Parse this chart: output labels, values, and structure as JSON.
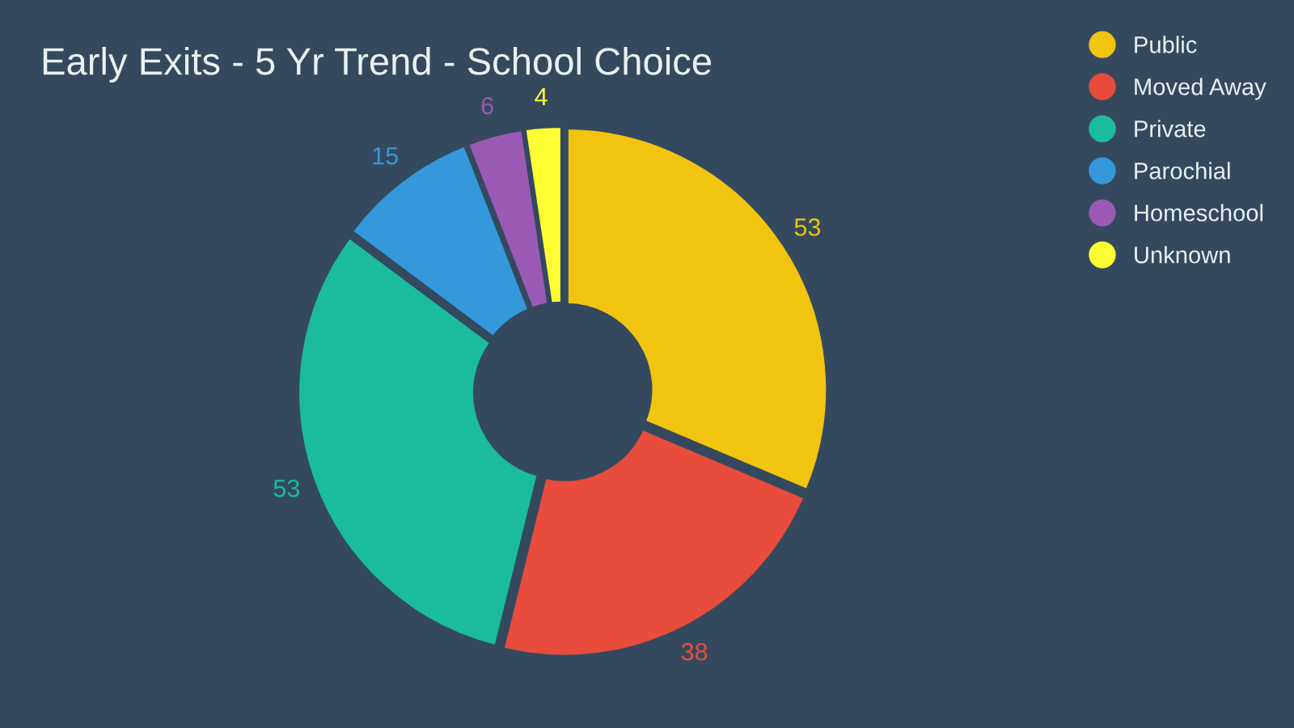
{
  "chart_data": {
    "type": "donut",
    "title": "Early Exits - 5 Yr Trend - School Choice",
    "categories": [
      "Public",
      "Moved Away",
      "Private",
      "Parochial",
      "Homeschool",
      "Unknown"
    ],
    "values": [
      53,
      38,
      53,
      15,
      6,
      4
    ],
    "colors": [
      "#f1c40f",
      "#e74c3c",
      "#1abc9c",
      "#3498db",
      "#9b59b6",
      "#ffff33"
    ],
    "data_labels": true,
    "legend": "top right"
  }
}
